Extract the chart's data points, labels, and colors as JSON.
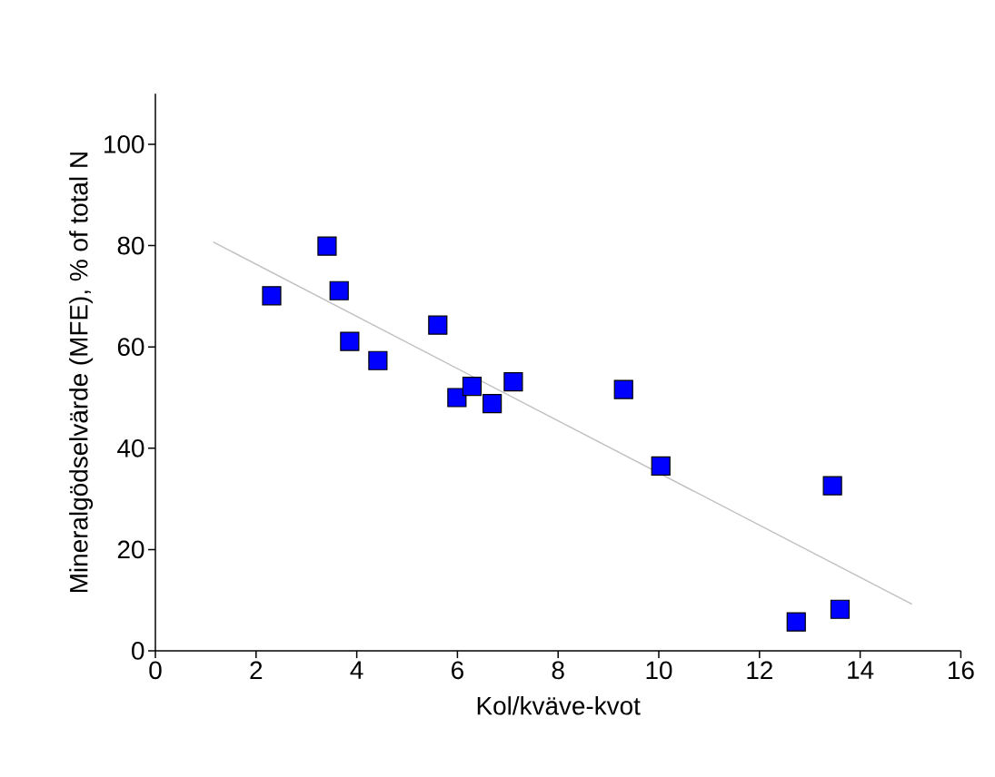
{
  "chart_data": {
    "type": "scatter",
    "xlabel": "Kol/kväve-kvot",
    "ylabel": "Mineralgödselvärde (MFE), % of total N",
    "xlim": [
      0,
      16
    ],
    "xticks": [
      0,
      2,
      4,
      6,
      8,
      10,
      12,
      14,
      16
    ],
    "ylim": [
      0,
      110
    ],
    "yticks": [
      0,
      20,
      40,
      60,
      80,
      100
    ],
    "marker": "square",
    "series": [
      {
        "color": "#0000ff",
        "x": [
          2.31,
          3.41,
          3.65,
          3.86,
          4.42,
          5.61,
          5.99,
          6.29,
          6.69,
          7.11,
          9.3,
          10.04,
          13.45,
          12.73,
          13.6
        ],
        "values": [
          70.1,
          79.9,
          71.1,
          61.1,
          57.3,
          64.3,
          50.0,
          52.2,
          48.8,
          53.1,
          51.6,
          36.5,
          32.6,
          5.7,
          8.2
        ]
      },
      {
        "type": "line",
        "color": "#c0c0c0",
        "marker": "none",
        "line_style": "solid",
        "x": [
          1.15,
          15.03
        ],
        "values": [
          80.7,
          9.2
        ]
      }
    ]
  }
}
